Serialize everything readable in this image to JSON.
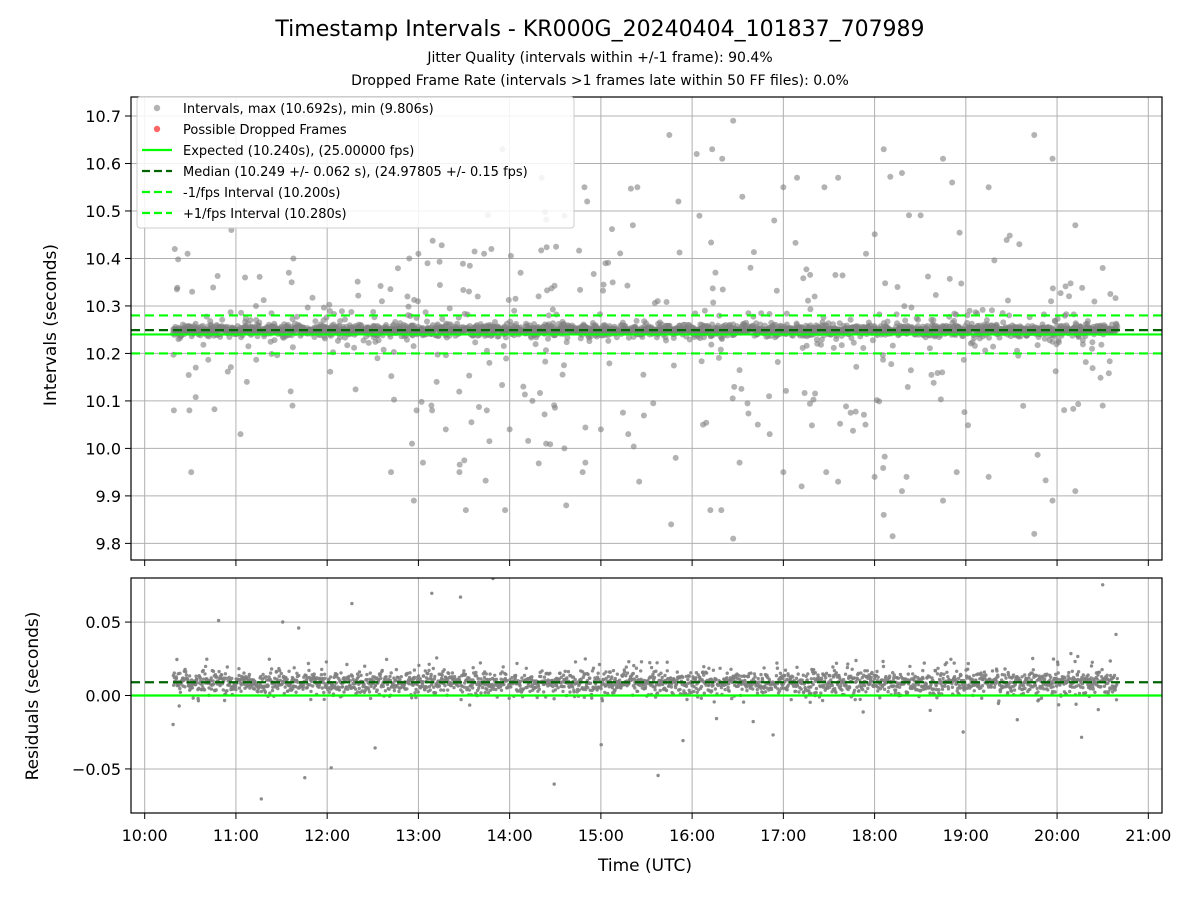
{
  "title": "Timestamp Intervals - KR000G_20240404_101837_707989",
  "subtitle_lines": [
    "Jitter Quality (intervals within +/-1 frame): 90.4%",
    "Dropped Frame Rate (intervals >1 frames late within 50 FF files): 0.0%"
  ],
  "colors": {
    "points": "#808080",
    "dropped": "#ff0000",
    "expected": "#00ff00",
    "median": "#006400",
    "bounds": "#00ff00",
    "grid": "#b0b0b0"
  },
  "chart_data": [
    {
      "type": "scatter",
      "panel": "top",
      "xlabel": "",
      "ylabel": "Intervals (seconds)",
      "xlim": [
        9.85,
        21.15
      ],
      "ylim": [
        9.765,
        10.74
      ],
      "yticks": [
        9.8,
        9.9,
        10.0,
        10.1,
        10.2,
        10.3,
        10.4,
        10.5,
        10.6,
        10.7
      ],
      "ytick_labels": [
        "9.8",
        "9.9",
        "10.0",
        "10.1",
        "10.2",
        "10.3",
        "10.4",
        "10.5",
        "10.6",
        "10.7"
      ],
      "xticks": [
        10,
        11,
        12,
        13,
        14,
        15,
        16,
        17,
        18,
        19,
        20,
        21
      ],
      "grid": true,
      "legend_position": "upper-left",
      "legend": [
        {
          "label": "Intervals, max (10.692s), min (9.806s)",
          "kind": "marker",
          "color": "#808080"
        },
        {
          "label": "Possible Dropped Frames",
          "kind": "marker",
          "color": "#ff0000"
        },
        {
          "label": "Expected (10.240s), (25.00000 fps)",
          "kind": "solid",
          "color": "#00ff00"
        },
        {
          "label": "Median (10.249 +/- 0.062 s), (24.97805 +/- 0.15 fps)",
          "kind": "dashed",
          "color": "#006400"
        },
        {
          "label": "-1/fps Interval (10.200s)",
          "kind": "dashed",
          "color": "#00ff00"
        },
        {
          "label": "+1/fps Interval (10.280s)",
          "kind": "dashed",
          "color": "#00ff00"
        }
      ],
      "hlines": [
        {
          "name": "expected",
          "y": 10.24,
          "style": "solid",
          "color": "#00ff00"
        },
        {
          "name": "median",
          "y": 10.249,
          "style": "dashed",
          "color": "#006400"
        },
        {
          "name": "minus-one-frame",
          "y": 10.2,
          "style": "dashed",
          "color": "#00ff00"
        },
        {
          "name": "plus-one-frame",
          "y": 10.28,
          "style": "dashed",
          "color": "#00ff00"
        }
      ],
      "x_range_data": [
        10.31,
        20.66
      ],
      "point_count": 2400,
      "outliers": [
        {
          "x": 10.33,
          "y": 10.42
        },
        {
          "x": 10.47,
          "y": 10.41
        },
        {
          "x": 10.52,
          "y": 10.33
        },
        {
          "x": 10.49,
          "y": 10.08
        },
        {
          "x": 10.51,
          "y": 9.95
        },
        {
          "x": 10.56,
          "y": 10.17
        },
        {
          "x": 10.32,
          "y": 10.08
        },
        {
          "x": 10.95,
          "y": 10.46
        },
        {
          "x": 11.05,
          "y": 10.03
        },
        {
          "x": 11.1,
          "y": 10.36
        },
        {
          "x": 11.12,
          "y": 10.14
        },
        {
          "x": 11.22,
          "y": 10.3
        },
        {
          "x": 11.58,
          "y": 10.37
        },
        {
          "x": 11.6,
          "y": 10.12
        },
        {
          "x": 11.62,
          "y": 10.09
        },
        {
          "x": 11.63,
          "y": 10.4
        },
        {
          "x": 12.6,
          "y": 10.31
        },
        {
          "x": 12.7,
          "y": 9.95
        },
        {
          "x": 12.88,
          "y": 10.32
        },
        {
          "x": 12.9,
          "y": 10.4
        },
        {
          "x": 12.93,
          "y": 10.01
        },
        {
          "x": 12.95,
          "y": 9.89
        },
        {
          "x": 12.98,
          "y": 10.08
        },
        {
          "x": 13.0,
          "y": 10.41
        },
        {
          "x": 13.05,
          "y": 9.97
        },
        {
          "x": 13.1,
          "y": 10.39
        },
        {
          "x": 13.15,
          "y": 10.08
        },
        {
          "x": 13.2,
          "y": 10.14
        },
        {
          "x": 13.3,
          "y": 10.04
        },
        {
          "x": 13.45,
          "y": 9.95
        },
        {
          "x": 13.52,
          "y": 9.87
        },
        {
          "x": 13.65,
          "y": 10.32
        },
        {
          "x": 13.72,
          "y": 10.41
        },
        {
          "x": 13.75,
          "y": 10.08
        },
        {
          "x": 13.8,
          "y": 10.42
        },
        {
          "x": 13.85,
          "y": 10.58
        },
        {
          "x": 13.92,
          "y": 10.63
        },
        {
          "x": 13.95,
          "y": 9.87
        },
        {
          "x": 14.0,
          "y": 10.04
        },
        {
          "x": 14.05,
          "y": 10.29
        },
        {
          "x": 14.12,
          "y": 10.37
        },
        {
          "x": 14.15,
          "y": 10.13
        },
        {
          "x": 14.25,
          "y": 10.1
        },
        {
          "x": 14.35,
          "y": 10.57
        },
        {
          "x": 14.4,
          "y": 10.01
        },
        {
          "x": 14.6,
          "y": 10.0
        },
        {
          "x": 14.6,
          "y": 10.49
        },
        {
          "x": 14.62,
          "y": 9.88
        },
        {
          "x": 14.8,
          "y": 9.95
        },
        {
          "x": 14.82,
          "y": 10.55
        },
        {
          "x": 14.83,
          "y": 9.97
        },
        {
          "x": 14.85,
          "y": 10.52
        },
        {
          "x": 15.0,
          "y": 10.04
        },
        {
          "x": 15.05,
          "y": 10.39
        },
        {
          "x": 15.3,
          "y": 10.03
        },
        {
          "x": 15.35,
          "y": 10.47
        },
        {
          "x": 15.4,
          "y": 10.55
        },
        {
          "x": 15.42,
          "y": 9.93
        },
        {
          "x": 15.75,
          "y": 10.66
        },
        {
          "x": 15.77,
          "y": 9.84
        },
        {
          "x": 15.85,
          "y": 10.52
        },
        {
          "x": 15.82,
          "y": 9.98
        },
        {
          "x": 16.05,
          "y": 10.62
        },
        {
          "x": 16.08,
          "y": 10.49
        },
        {
          "x": 16.12,
          "y": 10.05
        },
        {
          "x": 16.2,
          "y": 9.87
        },
        {
          "x": 16.22,
          "y": 10.63
        },
        {
          "x": 16.32,
          "y": 9.87
        },
        {
          "x": 16.33,
          "y": 10.61
        },
        {
          "x": 16.45,
          "y": 10.69
        },
        {
          "x": 16.45,
          "y": 9.81
        },
        {
          "x": 16.52,
          "y": 9.97
        },
        {
          "x": 16.55,
          "y": 10.53
        },
        {
          "x": 16.72,
          "y": 10.05
        },
        {
          "x": 16.85,
          "y": 10.03
        },
        {
          "x": 16.9,
          "y": 10.48
        },
        {
          "x": 17.0,
          "y": 10.55
        },
        {
          "x": 17.0,
          "y": 9.95
        },
        {
          "x": 17.15,
          "y": 10.57
        },
        {
          "x": 17.2,
          "y": 9.92
        },
        {
          "x": 17.45,
          "y": 10.55
        },
        {
          "x": 17.47,
          "y": 9.95
        },
        {
          "x": 17.6,
          "y": 10.57
        },
        {
          "x": 17.6,
          "y": 9.93
        },
        {
          "x": 17.9,
          "y": 10.05
        },
        {
          "x": 18.0,
          "y": 9.94
        },
        {
          "x": 18.1,
          "y": 10.63
        },
        {
          "x": 18.1,
          "y": 9.86
        },
        {
          "x": 18.3,
          "y": 10.58
        },
        {
          "x": 18.3,
          "y": 9.91
        },
        {
          "x": 18.35,
          "y": 9.94
        },
        {
          "x": 18.75,
          "y": 10.61
        },
        {
          "x": 18.75,
          "y": 9.89
        },
        {
          "x": 18.85,
          "y": 10.56
        },
        {
          "x": 18.9,
          "y": 9.95
        },
        {
          "x": 19.25,
          "y": 10.55
        },
        {
          "x": 19.25,
          "y": 9.94
        },
        {
          "x": 19.75,
          "y": 10.66
        },
        {
          "x": 19.75,
          "y": 9.82
        },
        {
          "x": 19.95,
          "y": 10.61
        },
        {
          "x": 19.95,
          "y": 9.89
        },
        {
          "x": 20.2,
          "y": 10.47
        },
        {
          "x": 20.2,
          "y": 9.91
        },
        {
          "x": 20.5,
          "y": 10.38
        },
        {
          "x": 20.5,
          "y": 10.09
        }
      ]
    },
    {
      "type": "scatter",
      "panel": "bottom",
      "xlabel": "Time (UTC)",
      "ylabel": "Residuals (seconds)",
      "xlim": [
        9.85,
        21.15
      ],
      "ylim": [
        -0.08,
        0.08
      ],
      "yticks": [
        -0.05,
        0.0,
        0.05
      ],
      "ytick_labels": [
        "−0.05",
        "0.00",
        "0.05"
      ],
      "xticks": [
        10,
        11,
        12,
        13,
        14,
        15,
        16,
        17,
        18,
        19,
        20,
        21
      ],
      "xtick_labels": [
        "10:00",
        "11:00",
        "12:00",
        "13:00",
        "14:00",
        "15:00",
        "16:00",
        "17:00",
        "18:00",
        "19:00",
        "20:00",
        "21:00"
      ],
      "grid": true,
      "hlines": [
        {
          "name": "zero",
          "y": 0.0,
          "style": "solid",
          "color": "#00ff00"
        },
        {
          "name": "median-residual",
          "y": 0.009,
          "style": "dashed",
          "color": "#006400"
        }
      ]
    }
  ]
}
